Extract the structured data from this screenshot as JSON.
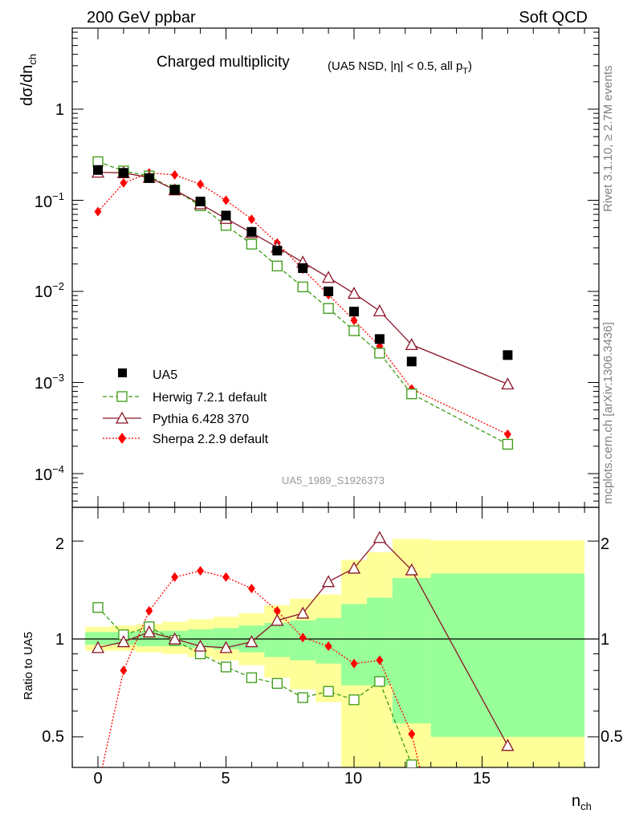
{
  "header": {
    "left": "200 GeV ppbar",
    "right": "Soft QCD"
  },
  "side": {
    "rivet": "Rivet 3.1.10, ≥ 2.7M events",
    "mcplots": "mcplots.cern.ch [arXiv:1306.3436]"
  },
  "colors": {
    "ua5": "#000000",
    "herwig": "#3a9a12",
    "pythia": "#8b1428",
    "sherpa": "#ff0000",
    "band_yellow": "#ffff99",
    "band_green": "#99ff99"
  },
  "chart_data": [
    {
      "type": "scatter",
      "title": "Charged multiplicity",
      "subtitle": "(UA5 NSD, |η| < 0.5, all p_T)",
      "ylabel": "dσ/dn_ch",
      "xlabel": "n_ch",
      "yscale": "log",
      "ylim": [
        3e-05,
        5
      ],
      "xlim": [
        -1,
        19.4
      ],
      "analysis_tag": "UA5_1989_S1926373",
      "y_tick_labels": [
        "1",
        "10^-1",
        "10^-2",
        "10^-3",
        "10^-4"
      ],
      "legend_position": "lower-left",
      "series": [
        {
          "name": "UA5",
          "style": "square",
          "x": [
            0,
            1,
            2,
            3,
            4,
            5,
            6,
            7,
            8,
            9,
            10,
            11,
            12.25,
            16
          ],
          "values": [
            0.215,
            0.2,
            0.175,
            0.13,
            0.097,
            0.068,
            0.045,
            0.028,
            0.018,
            0.01,
            0.006,
            0.003,
            0.0017,
            0.002
          ]
        },
        {
          "name": "Herwig 7.2.1 default",
          "style": "open-square-dashed",
          "x": [
            0,
            1,
            2,
            3,
            4,
            5,
            6,
            7,
            8,
            9,
            10,
            11,
            12.25,
            16
          ],
          "values": [
            0.265,
            0.21,
            0.185,
            0.13,
            0.087,
            0.053,
            0.033,
            0.019,
            0.0112,
            0.0065,
            0.0037,
            0.0021,
            0.00075,
            0.00021
          ]
        },
        {
          "name": "Pythia 6.428 370",
          "style": "open-triangle-solid",
          "x": [
            0,
            1,
            2,
            3,
            4,
            5,
            6,
            7,
            8,
            9,
            10,
            11,
            12.25,
            16
          ],
          "values": [
            0.203,
            0.2,
            0.178,
            0.13,
            0.091,
            0.063,
            0.044,
            0.0305,
            0.0209,
            0.0142,
            0.0095,
            0.0061,
            0.0026,
            0.00096
          ]
        },
        {
          "name": "Sherpa 2.2.9 default",
          "style": "diamond-dotted",
          "x": [
            0,
            1,
            2,
            3,
            4,
            5,
            6,
            7,
            8,
            9,
            10,
            11,
            12.25,
            16
          ],
          "values": [
            0.075,
            0.155,
            0.2,
            0.19,
            0.15,
            0.1,
            0.062,
            0.034,
            0.0175,
            0.0092,
            0.0048,
            0.0025,
            0.00085,
            0.00027
          ]
        }
      ]
    },
    {
      "type": "line",
      "ylabel": "Ratio to UA5",
      "xlabel": "n_ch",
      "ylim": [
        0.35,
        2.3
      ],
      "xlim": [
        -1,
        19.4
      ],
      "x_ticks": [
        0,
        5,
        10,
        15
      ],
      "y_ticks": [
        0.5,
        1,
        2
      ],
      "reference_line": 1,
      "uncertainty_bands": {
        "edges": [
          -0.5,
          0.5,
          1.5,
          2.5,
          3.5,
          4.5,
          5.5,
          6.5,
          7.5,
          8.5,
          9.5,
          10.5,
          11.5,
          13,
          19
        ],
        "yellow": [
          [
            0.92,
            1.09
          ],
          [
            0.92,
            1.1
          ],
          [
            0.91,
            1.11
          ],
          [
            0.9,
            1.13
          ],
          [
            0.88,
            1.15
          ],
          [
            0.86,
            1.17
          ],
          [
            0.83,
            1.2
          ],
          [
            0.76,
            1.27
          ],
          [
            0.7,
            1.33
          ],
          [
            0.64,
            1.37
          ],
          [
            0.3,
            1.75
          ],
          [
            0.3,
            1.85
          ],
          [
            0.3,
            2.03
          ],
          [
            0.3,
            2.01
          ]
        ],
        "green": [
          [
            0.96,
            1.05
          ],
          [
            0.96,
            1.05
          ],
          [
            0.95,
            1.06
          ],
          [
            0.95,
            1.06
          ],
          [
            0.94,
            1.07
          ],
          [
            0.93,
            1.08
          ],
          [
            0.91,
            1.1
          ],
          [
            0.88,
            1.12
          ],
          [
            0.86,
            1.14
          ],
          [
            0.84,
            1.16
          ],
          [
            0.72,
            1.28
          ],
          [
            0.72,
            1.34
          ],
          [
            0.55,
            1.54
          ],
          [
            0.5,
            1.59
          ]
        ]
      },
      "series": [
        {
          "name": "Herwig 7.2.1 default",
          "x": [
            0,
            1,
            2,
            3,
            4,
            5,
            6,
            7,
            8,
            9,
            10,
            11,
            12.25,
            13.1
          ],
          "values": [
            1.25,
            1.03,
            1.09,
            0.99,
            0.9,
            0.82,
            0.76,
            0.73,
            0.66,
            0.69,
            0.65,
            0.74,
            0.41,
            0.25
          ]
        },
        {
          "name": "Pythia 6.428 370",
          "x": [
            0,
            1,
            2,
            3,
            4,
            5,
            6,
            7,
            8,
            9,
            10,
            11,
            12.25,
            16
          ],
          "values": [
            0.94,
            0.98,
            1.05,
            1.0,
            0.95,
            0.94,
            0.98,
            1.14,
            1.2,
            1.5,
            1.65,
            2.05,
            1.63,
            0.47
          ]
        },
        {
          "name": "Sherpa 2.2.9 default",
          "x": [
            -0.2,
            0,
            1,
            2,
            3,
            4,
            5,
            6,
            7,
            8,
            9,
            10,
            11,
            12.25,
            13.2
          ],
          "values": [
            0.25,
            0.35,
            0.8,
            1.22,
            1.55,
            1.62,
            1.55,
            1.43,
            1.22,
            1.01,
            0.95,
            0.84,
            0.86,
            0.51,
            0.25
          ]
        }
      ]
    }
  ]
}
